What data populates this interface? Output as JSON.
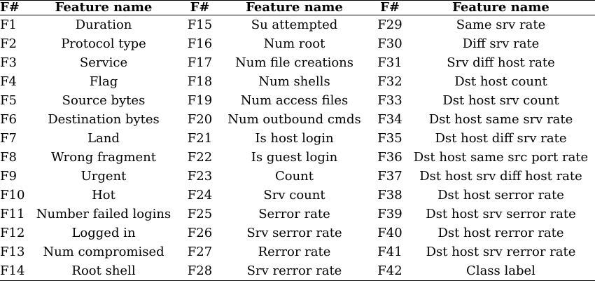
{
  "header": {
    "col1_id": "F#",
    "col1_name": "Feature name",
    "col2_id": "F#",
    "col2_name": "Feature name",
    "col3_id": "F#",
    "col3_name": "Feature name"
  },
  "rows": [
    [
      {
        "id": "F1",
        "name": "Duration"
      },
      {
        "id": "F15",
        "name": "Su attempted"
      },
      {
        "id": "F29",
        "name": "Same srv rate"
      }
    ],
    [
      {
        "id": "F2",
        "name": "Protocol type"
      },
      {
        "id": "F16",
        "name": "Num root"
      },
      {
        "id": "F30",
        "name": "Diff srv rate"
      }
    ],
    [
      {
        "id": "F3",
        "name": "Service"
      },
      {
        "id": "F17",
        "name": "Num file creations"
      },
      {
        "id": "F31",
        "name": "Srv diff host rate"
      }
    ],
    [
      {
        "id": "F4",
        "name": "Flag"
      },
      {
        "id": "F18",
        "name": "Num shells"
      },
      {
        "id": "F32",
        "name": "Dst host count"
      }
    ],
    [
      {
        "id": "F5",
        "name": "Source bytes"
      },
      {
        "id": "F19",
        "name": "Num access files"
      },
      {
        "id": "F33",
        "name": "Dst host srv count"
      }
    ],
    [
      {
        "id": "F6",
        "name": "Destination bytes"
      },
      {
        "id": "F20",
        "name": "Num outbound cmds"
      },
      {
        "id": "F34",
        "name": "Dst host same srv rate"
      }
    ],
    [
      {
        "id": "F7",
        "name": "Land"
      },
      {
        "id": "F21",
        "name": "Is host login"
      },
      {
        "id": "F35",
        "name": "Dst host diff srv rate"
      }
    ],
    [
      {
        "id": "F8",
        "name": "Wrong fragment"
      },
      {
        "id": "F22",
        "name": "Is guest login"
      },
      {
        "id": "F36",
        "name": "Dst host same src port rate"
      }
    ],
    [
      {
        "id": "F9",
        "name": "Urgent"
      },
      {
        "id": "F23",
        "name": "Count"
      },
      {
        "id": "F37",
        "name": "Dst host srv diff host rate"
      }
    ],
    [
      {
        "id": "F10",
        "name": "Hot"
      },
      {
        "id": "F24",
        "name": "Srv count"
      },
      {
        "id": "F38",
        "name": "Dst host serror rate"
      }
    ],
    [
      {
        "id": "F11",
        "name": "Number failed logins"
      },
      {
        "id": "F25",
        "name": "Serror rate"
      },
      {
        "id": "F39",
        "name": "Dst host srv serror rate"
      }
    ],
    [
      {
        "id": "F12",
        "name": "Logged in"
      },
      {
        "id": "F26",
        "name": "Srv serror rate"
      },
      {
        "id": "F40",
        "name": "Dst host rerror rate"
      }
    ],
    [
      {
        "id": "F13",
        "name": "Num compromised"
      },
      {
        "id": "F27",
        "name": "Rerror rate"
      },
      {
        "id": "F41",
        "name": "Dst host srv rerror rate"
      }
    ],
    [
      {
        "id": "F14",
        "name": "Root shell"
      },
      {
        "id": "F28",
        "name": "Srv rerror rate"
      },
      {
        "id": "F42",
        "name": "Class label"
      }
    ]
  ]
}
